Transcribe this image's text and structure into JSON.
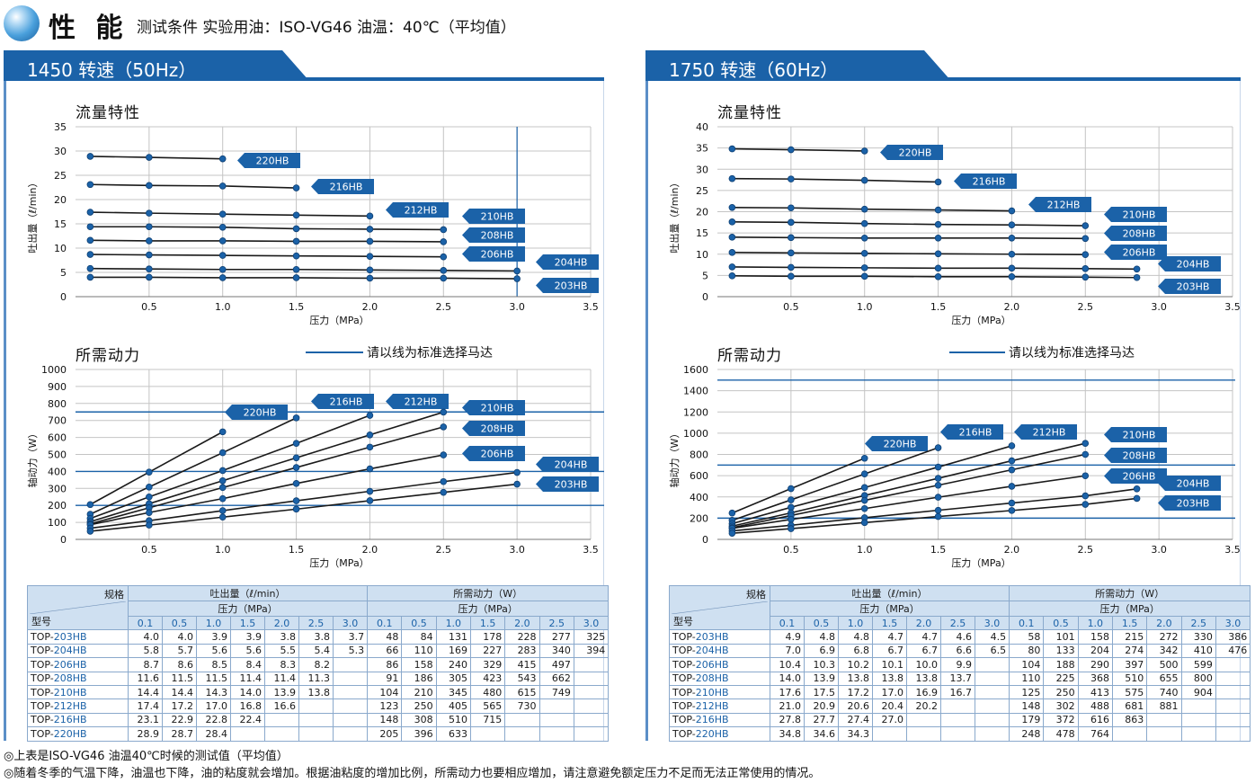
{
  "header": {
    "title": "性 能",
    "subtitle": "测试条件 实验用油：ISO-VG46 油温：40℃（平均值）"
  },
  "panels": [
    {
      "tab_label": "1450 转速（50Hz）",
      "flow_title": "流量特性",
      "power_title": "所需动力",
      "legend_label": "请以线为标准选择马达",
      "flow_ylabel": "吐出量（ℓ/min）",
      "power_ylabel": "轴动力（W）",
      "xlabel": "压力（MPa）"
    },
    {
      "tab_label": "1750 转速（60Hz）",
      "flow_title": "流量特性",
      "power_title": "所需动力",
      "legend_label": "请以线为标准选择马达",
      "flow_ylabel": "吐出量（ℓ/min）",
      "power_ylabel": "轴动力（W）",
      "xlabel": "压力（MPa）"
    }
  ],
  "chart_data": [
    {
      "type": "line",
      "title": "流量特性",
      "xlabel": "压力（MPa）",
      "ylabel": "吐出量（ℓ/min）",
      "xlim": [
        0,
        3.5
      ],
      "ylim": [
        0,
        35
      ],
      "xticks": [
        0.5,
        1.0,
        1.5,
        2.0,
        2.5,
        3.0,
        3.5
      ],
      "yticks": [
        0,
        5,
        10,
        15,
        20,
        25,
        30,
        35
      ],
      "highlight_x": [
        3.0
      ],
      "series": [
        {
          "name": "220HB",
          "x": [
            0.1,
            0.5,
            1.0
          ],
          "y": [
            28.9,
            28.7,
            28.4
          ]
        },
        {
          "name": "216HB",
          "x": [
            0.1,
            0.5,
            1.0,
            1.5
          ],
          "y": [
            23.1,
            22.9,
            22.8,
            22.4
          ]
        },
        {
          "name": "212HB",
          "x": [
            0.1,
            0.5,
            1.0,
            1.5,
            2.0
          ],
          "y": [
            17.4,
            17.2,
            17.0,
            16.8,
            16.6
          ]
        },
        {
          "name": "210HB",
          "x": [
            0.1,
            0.5,
            1.0,
            1.5,
            2.0,
            2.5
          ],
          "y": [
            14.4,
            14.4,
            14.3,
            14.0,
            13.9,
            13.8
          ]
        },
        {
          "name": "208HB",
          "x": [
            0.1,
            0.5,
            1.0,
            1.5,
            2.0,
            2.5
          ],
          "y": [
            11.6,
            11.5,
            11.5,
            11.4,
            11.4,
            11.3
          ]
        },
        {
          "name": "206HB",
          "x": [
            0.1,
            0.5,
            1.0,
            1.5,
            2.0,
            2.5
          ],
          "y": [
            8.7,
            8.6,
            8.5,
            8.4,
            8.3,
            8.2
          ]
        },
        {
          "name": "204HB",
          "x": [
            0.1,
            0.5,
            1.0,
            1.5,
            2.0,
            2.5,
            3.0
          ],
          "y": [
            5.8,
            5.7,
            5.6,
            5.6,
            5.5,
            5.4,
            5.3
          ]
        },
        {
          "name": "203HB",
          "x": [
            0.1,
            0.5,
            1.0,
            1.5,
            2.0,
            2.5,
            3.0
          ],
          "y": [
            4.0,
            4.0,
            3.9,
            3.9,
            3.8,
            3.8,
            3.7
          ]
        }
      ]
    },
    {
      "type": "line",
      "title": "所需动力",
      "xlabel": "压力（MPa）",
      "ylabel": "轴动力（W）",
      "xlim": [
        0,
        3.5
      ],
      "ylim": [
        0,
        1000
      ],
      "xticks": [
        0.5,
        1.0,
        1.5,
        2.0,
        2.5,
        3.0,
        3.5
      ],
      "yticks": [
        0,
        100,
        200,
        300,
        400,
        500,
        600,
        700,
        800,
        900,
        1000
      ],
      "motor_lines": [
        200,
        400,
        750
      ],
      "series": [
        {
          "name": "220HB",
          "x": [
            0.1,
            0.5,
            1.0
          ],
          "y": [
            205,
            396,
            633
          ]
        },
        {
          "name": "216HB",
          "x": [
            0.1,
            0.5,
            1.0,
            1.5
          ],
          "y": [
            148,
            308,
            510,
            715
          ]
        },
        {
          "name": "212HB",
          "x": [
            0.1,
            0.5,
            1.0,
            1.5,
            2.0
          ],
          "y": [
            123,
            250,
            405,
            565,
            730
          ]
        },
        {
          "name": "210HB",
          "x": [
            0.1,
            0.5,
            1.0,
            1.5,
            2.0,
            2.5
          ],
          "y": [
            104,
            210,
            345,
            480,
            615,
            749
          ]
        },
        {
          "name": "208HB",
          "x": [
            0.1,
            0.5,
            1.0,
            1.5,
            2.0,
            2.5
          ],
          "y": [
            91,
            186,
            305,
            423,
            543,
            662
          ]
        },
        {
          "name": "206HB",
          "x": [
            0.1,
            0.5,
            1.0,
            1.5,
            2.0,
            2.5
          ],
          "y": [
            86,
            158,
            240,
            329,
            415,
            497
          ]
        },
        {
          "name": "204HB",
          "x": [
            0.1,
            0.5,
            1.0,
            1.5,
            2.0,
            2.5,
            3.0
          ],
          "y": [
            66,
            110,
            169,
            227,
            283,
            340,
            394
          ]
        },
        {
          "name": "203HB",
          "x": [
            0.1,
            0.5,
            1.0,
            1.5,
            2.0,
            2.5,
            3.0
          ],
          "y": [
            48,
            84,
            131,
            178,
            228,
            277,
            325
          ]
        }
      ]
    },
    {
      "type": "line",
      "title": "流量特性",
      "xlabel": "压力（MPa）",
      "ylabel": "吐出量（ℓ/min）",
      "xlim": [
        0,
        3.5
      ],
      "ylim": [
        0,
        40
      ],
      "xticks": [
        0.5,
        1.0,
        1.5,
        2.0,
        2.5,
        3.0,
        3.5
      ],
      "yticks": [
        0,
        5,
        10,
        15,
        20,
        25,
        30,
        35,
        40
      ],
      "series": [
        {
          "name": "220HB",
          "x": [
            0.1,
            0.5,
            1.0
          ],
          "y": [
            34.8,
            34.6,
            34.3
          ]
        },
        {
          "name": "216HB",
          "x": [
            0.1,
            0.5,
            1.0,
            1.5
          ],
          "y": [
            27.8,
            27.7,
            27.4,
            27.0
          ]
        },
        {
          "name": "212HB",
          "x": [
            0.1,
            0.5,
            1.0,
            1.5,
            2.0
          ],
          "y": [
            21.0,
            20.9,
            20.6,
            20.4,
            20.2
          ]
        },
        {
          "name": "210HB",
          "x": [
            0.1,
            0.5,
            1.0,
            1.5,
            2.0,
            2.5
          ],
          "y": [
            17.6,
            17.5,
            17.2,
            17.0,
            16.9,
            16.7
          ]
        },
        {
          "name": "208HB",
          "x": [
            0.1,
            0.5,
            1.0,
            1.5,
            2.0,
            2.5
          ],
          "y": [
            14.0,
            13.9,
            13.8,
            13.8,
            13.8,
            13.7
          ]
        },
        {
          "name": "206HB",
          "x": [
            0.1,
            0.5,
            1.0,
            1.5,
            2.0,
            2.5
          ],
          "y": [
            10.4,
            10.3,
            10.2,
            10.1,
            10.0,
            9.9
          ]
        },
        {
          "name": "204HB",
          "x": [
            0.1,
            0.5,
            1.0,
            1.5,
            2.0,
            2.5,
            2.85
          ],
          "y": [
            7.0,
            6.9,
            6.8,
            6.7,
            6.7,
            6.6,
            6.5
          ]
        },
        {
          "name": "203HB",
          "x": [
            0.1,
            0.5,
            1.0,
            1.5,
            2.0,
            2.5,
            2.85
          ],
          "y": [
            4.9,
            4.8,
            4.8,
            4.7,
            4.7,
            4.6,
            4.5
          ]
        }
      ]
    },
    {
      "type": "line",
      "title": "所需动力",
      "xlabel": "压力（MPa）",
      "ylabel": "轴动力（W）",
      "xlim": [
        0,
        3.5
      ],
      "ylim": [
        0,
        1600
      ],
      "xticks": [
        0.5,
        1.0,
        1.5,
        2.0,
        2.5,
        3.0,
        3.5
      ],
      "yticks": [
        0,
        200,
        400,
        600,
        800,
        1000,
        1200,
        1400,
        1600
      ],
      "motor_lines": [
        200,
        700,
        1500
      ],
      "series": [
        {
          "name": "220HB",
          "x": [
            0.1,
            0.5,
            1.0
          ],
          "y": [
            248,
            478,
            764
          ]
        },
        {
          "name": "216HB",
          "x": [
            0.1,
            0.5,
            1.0,
            1.5
          ],
          "y": [
            179,
            372,
            616,
            863
          ]
        },
        {
          "name": "212HB",
          "x": [
            0.1,
            0.5,
            1.0,
            1.5,
            2.0
          ],
          "y": [
            148,
            302,
            488,
            681,
            881
          ]
        },
        {
          "name": "210HB",
          "x": [
            0.1,
            0.5,
            1.0,
            1.5,
            2.0,
            2.5
          ],
          "y": [
            125,
            250,
            413,
            575,
            740,
            904
          ]
        },
        {
          "name": "208HB",
          "x": [
            0.1,
            0.5,
            1.0,
            1.5,
            2.0,
            2.5
          ],
          "y": [
            110,
            225,
            368,
            510,
            655,
            800
          ]
        },
        {
          "name": "206HB",
          "x": [
            0.1,
            0.5,
            1.0,
            1.5,
            2.0,
            2.5
          ],
          "y": [
            104,
            188,
            290,
            397,
            500,
            599
          ]
        },
        {
          "name": "204HB",
          "x": [
            0.1,
            0.5,
            1.0,
            1.5,
            2.0,
            2.5,
            2.85
          ],
          "y": [
            80,
            133,
            204,
            274,
            342,
            410,
            476
          ]
        },
        {
          "name": "203HB",
          "x": [
            0.1,
            0.5,
            1.0,
            1.5,
            2.0,
            2.5,
            2.85
          ],
          "y": [
            58,
            101,
            158,
            215,
            272,
            330,
            386
          ]
        }
      ]
    }
  ],
  "tables": [
    {
      "header_spec": "规格",
      "header_model": "型号",
      "header_flow": "吐出量（ℓ/min）",
      "header_power": "所需动力（W）",
      "header_pressure": "压力（MPa）",
      "pressures": [
        "0.1",
        "0.5",
        "1.0",
        "1.5",
        "2.0",
        "2.5",
        "3.0"
      ],
      "rows": [
        {
          "prefix": "TOP-",
          "model": "203HB",
          "flow": [
            "4.0",
            "4.0",
            "3.9",
            "3.9",
            "3.8",
            "3.8",
            "3.7"
          ],
          "power": [
            "48",
            "84",
            "131",
            "178",
            "228",
            "277",
            "325"
          ]
        },
        {
          "prefix": "TOP-",
          "model": "204HB",
          "flow": [
            "5.8",
            "5.7",
            "5.6",
            "5.6",
            "5.5",
            "5.4",
            "5.3"
          ],
          "power": [
            "66",
            "110",
            "169",
            "227",
            "283",
            "340",
            "394"
          ]
        },
        {
          "prefix": "TOP-",
          "model": "206HB",
          "flow": [
            "8.7",
            "8.6",
            "8.5",
            "8.4",
            "8.3",
            "8.2",
            ""
          ],
          "power": [
            "86",
            "158",
            "240",
            "329",
            "415",
            "497",
            ""
          ]
        },
        {
          "prefix": "TOP-",
          "model": "208HB",
          "flow": [
            "11.6",
            "11.5",
            "11.5",
            "11.4",
            "11.4",
            "11.3",
            ""
          ],
          "power": [
            "91",
            "186",
            "305",
            "423",
            "543",
            "662",
            ""
          ]
        },
        {
          "prefix": "TOP-",
          "model": "210HB",
          "flow": [
            "14.4",
            "14.4",
            "14.3",
            "14.0",
            "13.9",
            "13.8",
            ""
          ],
          "power": [
            "104",
            "210",
            "345",
            "480",
            "615",
            "749",
            ""
          ]
        },
        {
          "prefix": "TOP-",
          "model": "212HB",
          "flow": [
            "17.4",
            "17.2",
            "17.0",
            "16.8",
            "16.6",
            "",
            ""
          ],
          "power": [
            "123",
            "250",
            "405",
            "565",
            "730",
            "",
            ""
          ]
        },
        {
          "prefix": "TOP-",
          "model": "216HB",
          "flow": [
            "23.1",
            "22.9",
            "22.8",
            "22.4",
            "",
            "",
            ""
          ],
          "power": [
            "148",
            "308",
            "510",
            "715",
            "",
            "",
            ""
          ]
        },
        {
          "prefix": "TOP-",
          "model": "220HB",
          "flow": [
            "28.9",
            "28.7",
            "28.4",
            "",
            "",
            "",
            ""
          ],
          "power": [
            "205",
            "396",
            "633",
            "",
            "",
            "",
            ""
          ]
        }
      ]
    },
    {
      "header_spec": "规格",
      "header_model": "型号",
      "header_flow": "吐出量（ℓ/min）",
      "header_power": "所需动力（W）",
      "header_pressure": "压力（MPa）",
      "pressures": [
        "0.1",
        "0.5",
        "1.0",
        "1.5",
        "2.0",
        "2.5",
        "3.0"
      ],
      "rows": [
        {
          "prefix": "TOP-",
          "model": "203HB",
          "flow": [
            "4.9",
            "4.8",
            "4.8",
            "4.7",
            "4.7",
            "4.6",
            "4.5"
          ],
          "power": [
            "58",
            "101",
            "158",
            "215",
            "272",
            "330",
            "386"
          ]
        },
        {
          "prefix": "TOP-",
          "model": "204HB",
          "flow": [
            "7.0",
            "6.9",
            "6.8",
            "6.7",
            "6.7",
            "6.6",
            "6.5"
          ],
          "power": [
            "80",
            "133",
            "204",
            "274",
            "342",
            "410",
            "476"
          ]
        },
        {
          "prefix": "TOP-",
          "model": "206HB",
          "flow": [
            "10.4",
            "10.3",
            "10.2",
            "10.1",
            "10.0",
            "9.9",
            ""
          ],
          "power": [
            "104",
            "188",
            "290",
            "397",
            "500",
            "599",
            ""
          ]
        },
        {
          "prefix": "TOP-",
          "model": "208HB",
          "flow": [
            "14.0",
            "13.9",
            "13.8",
            "13.8",
            "13.8",
            "13.7",
            ""
          ],
          "power": [
            "110",
            "225",
            "368",
            "510",
            "655",
            "800",
            ""
          ]
        },
        {
          "prefix": "TOP-",
          "model": "210HB",
          "flow": [
            "17.6",
            "17.5",
            "17.2",
            "17.0",
            "16.9",
            "16.7",
            ""
          ],
          "power": [
            "125",
            "250",
            "413",
            "575",
            "740",
            "904",
            ""
          ]
        },
        {
          "prefix": "TOP-",
          "model": "212HB",
          "flow": [
            "21.0",
            "20.9",
            "20.6",
            "20.4",
            "20.2",
            "",
            ""
          ],
          "power": [
            "148",
            "302",
            "488",
            "681",
            "881",
            "",
            ""
          ]
        },
        {
          "prefix": "TOP-",
          "model": "216HB",
          "flow": [
            "27.8",
            "27.7",
            "27.4",
            "27.0",
            "",
            "",
            ""
          ],
          "power": [
            "179",
            "372",
            "616",
            "863",
            "",
            "",
            ""
          ]
        },
        {
          "prefix": "TOP-",
          "model": "220HB",
          "flow": [
            "34.8",
            "34.6",
            "34.3",
            "",
            "",
            "",
            ""
          ],
          "power": [
            "248",
            "478",
            "764",
            "",
            "",
            "",
            ""
          ]
        }
      ]
    }
  ],
  "footnotes": [
    "◎上表是ISO-VG46 油温40℃时候的测试值（平均值）",
    "◎随着冬季的气温下降，油温也下降，油的粘度就会增加。根据油粘度的增加比例，所需动力也要相应增加，请注意避免额定压力不足而无法正常使用的情况。"
  ],
  "colors": {
    "accent": "#1b62a8",
    "table_header": "#cfe0f1",
    "grid": "#bdbdbd",
    "series_line": "#1a1a1a"
  }
}
